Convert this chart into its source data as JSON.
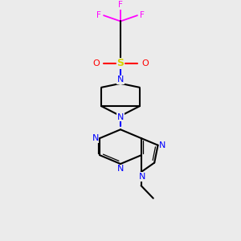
{
  "bg_color": "#ebebeb",
  "bond_color": "#000000",
  "N_color": "#0000ff",
  "O_color": "#ff0000",
  "S_color": "#d4d400",
  "F_color": "#ff00ff",
  "C_color": "#000000",
  "fig_w": 3.0,
  "fig_h": 3.0,
  "dpi": 100,
  "xlim": [
    0,
    10
  ],
  "ylim": [
    0,
    10
  ]
}
